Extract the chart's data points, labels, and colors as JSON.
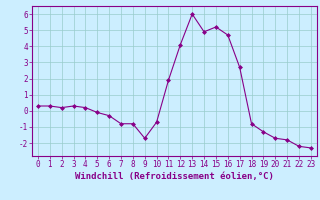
{
  "x": [
    0,
    1,
    2,
    3,
    4,
    5,
    6,
    7,
    8,
    9,
    10,
    11,
    12,
    13,
    14,
    15,
    16,
    17,
    18,
    19,
    20,
    21,
    22,
    23
  ],
  "y": [
    0.3,
    0.3,
    0.2,
    0.3,
    0.2,
    -0.1,
    -0.3,
    -0.8,
    -0.8,
    -1.7,
    -0.7,
    1.9,
    4.1,
    6.0,
    4.9,
    5.2,
    4.7,
    2.7,
    -0.8,
    -1.3,
    -1.7,
    -1.8,
    -2.2,
    -2.3
  ],
  "line_color": "#880088",
  "marker": "D",
  "marker_size": 2.0,
  "background_color": "#cceeff",
  "grid_color": "#99cccc",
  "xlabel": "Windchill (Refroidissement éolien,°C)",
  "xlim": [
    -0.5,
    23.5
  ],
  "ylim": [
    -2.8,
    6.5
  ],
  "yticks": [
    -2,
    -1,
    0,
    1,
    2,
    3,
    4,
    5,
    6
  ],
  "xticks": [
    0,
    1,
    2,
    3,
    4,
    5,
    6,
    7,
    8,
    9,
    10,
    11,
    12,
    13,
    14,
    15,
    16,
    17,
    18,
    19,
    20,
    21,
    22,
    23
  ],
  "tick_color": "#880088",
  "label_color": "#880088",
  "tick_fontsize": 5.5,
  "xlabel_fontsize": 6.5
}
